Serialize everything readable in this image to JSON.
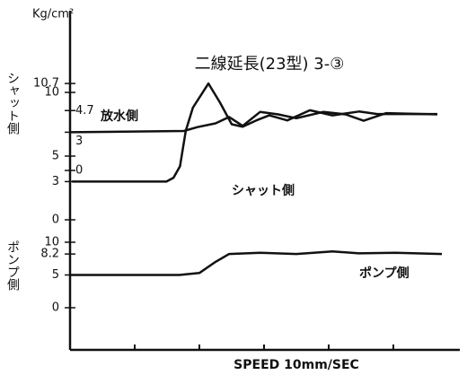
{
  "chart_data": {
    "type": "line",
    "title": "二線延長(23型) 3-③",
    "y_unit": "Kg/cm²",
    "x_label": "SPEED 10mm/SEC",
    "xlim": [
      0,
      6
    ],
    "xticks": [
      1,
      2,
      3,
      4,
      5
    ],
    "panels": [
      {
        "ylabel": "シャット側",
        "ylim": [
          0,
          12
        ],
        "yticks": [
          0,
          3,
          5,
          10,
          10.7
        ],
        "series": [
          {
            "name": "シャット側",
            "color": "#111111",
            "x": [
              0.03,
              1.49,
              1.6,
              1.7,
              1.79,
              1.9,
              2.14,
              2.32,
              2.5,
              2.67,
              2.88,
              3.08,
              3.36,
              3.71,
              4.06,
              4.47,
              4.75,
              5.68
            ],
            "values": [
              3,
              3,
              3.3,
              4.2,
              7.0,
              8.8,
              10.7,
              9.2,
              7.5,
              7.3,
              7.8,
              8.2,
              7.8,
              8.6,
              8.2,
              8.5,
              8.3,
              8.3
            ]
          }
        ]
      },
      {
        "ylabel": null,
        "ylim": [
          0,
          5
        ],
        "yticks": [
          0,
          3,
          4.7
        ],
        "series": [
          {
            "name": "放水側",
            "color": "#111111",
            "x": [
              0.0,
              1.76,
              1.97,
              2.25,
              2.46,
              2.67,
              2.94,
              3.22,
              3.5,
              3.92,
              4.26,
              4.54,
              4.89,
              5.68
            ],
            "values": [
              3.0,
              3.1,
              3.4,
              3.7,
              4.2,
              3.5,
              4.6,
              4.4,
              4.1,
              4.6,
              4.4,
              3.9,
              4.5,
              4.4
            ]
          }
        ]
      },
      {
        "ylabel": "ポンプ側",
        "ylim": [
          0,
          12
        ],
        "yticks": [
          0,
          5,
          8.2,
          10
        ],
        "series": [
          {
            "name": "ポンプ側",
            "color": "#111111",
            "x": [
              0,
              1.69,
              2.0,
              2.25,
              2.46,
              2.94,
              3.5,
              4.06,
              4.47,
              5.03,
              5.75
            ],
            "values": [
              5,
              5,
              5.3,
              7.0,
              8.2,
              8.4,
              8.2,
              8.6,
              8.3,
              8.4,
              8.2
            ]
          }
        ]
      }
    ]
  }
}
